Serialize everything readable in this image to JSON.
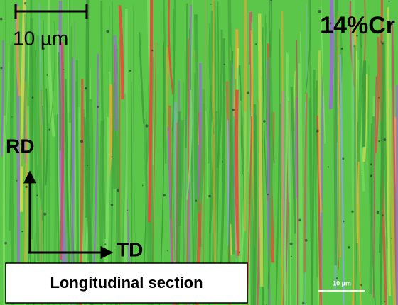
{
  "scale_bar_label": "10 µm",
  "alloy_label": "14%Cr",
  "axes": {
    "vertical": "RD",
    "horizontal": "TD"
  },
  "section_label": "Longitudinal section",
  "inset_scale_bar_label": "10 µm"
}
